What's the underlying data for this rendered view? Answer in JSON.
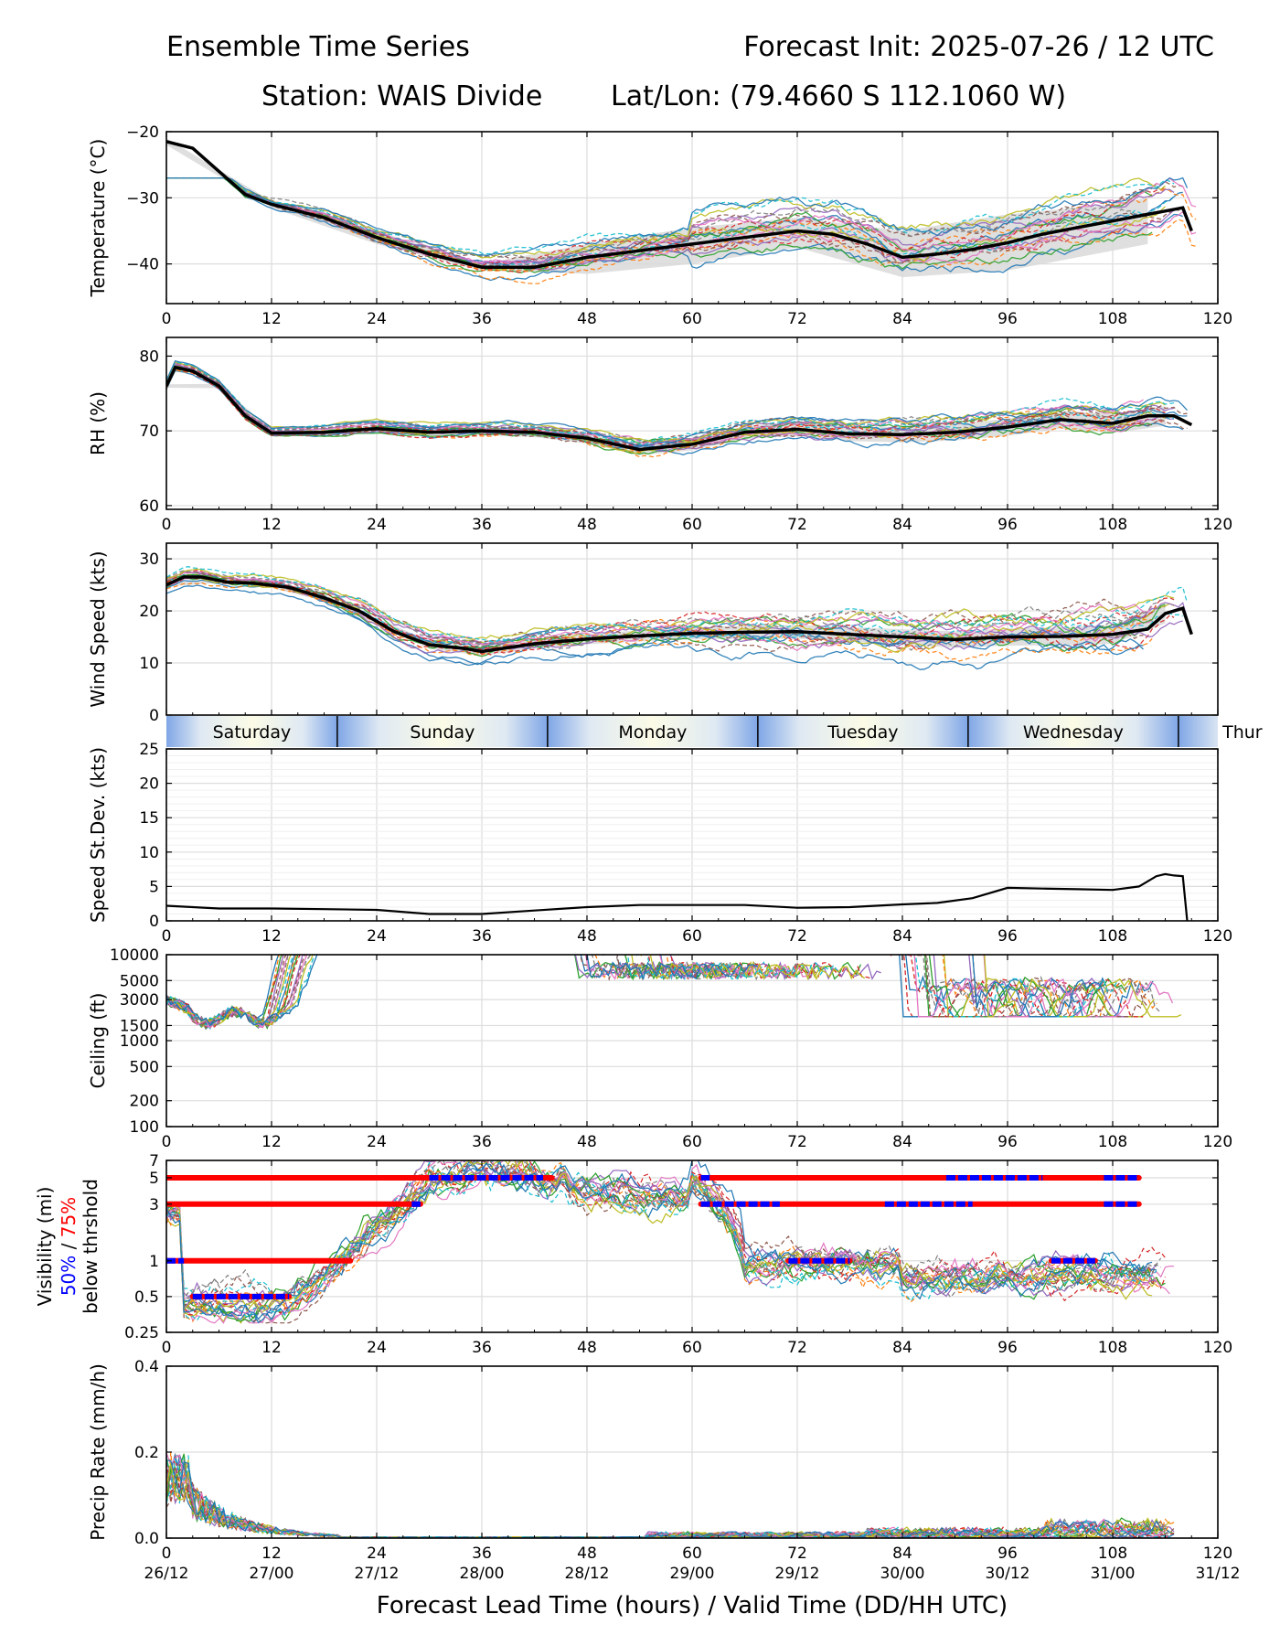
{
  "header": {
    "left": "Ensemble Time Series",
    "right": "Forecast Init: 2025-07-26 / 12 UTC",
    "station": "Station: WAIS Divide",
    "latlon": "Lat/Lon: (79.4660 S 112.1060 W)"
  },
  "colors": {
    "mean": "#000000",
    "spread": "#d9d9d9",
    "thr50": "#0000ff",
    "thr75": "#ff0000",
    "members": [
      "#1f77b4",
      "#ff7f0e",
      "#2ca02c",
      "#d62728",
      "#9467bd",
      "#8c564b",
      "#e377c2",
      "#7f7f7f",
      "#bcbd22",
      "#17becf"
    ]
  },
  "chart_data": [
    {
      "id": "temp",
      "type": "line",
      "ylabel": "Temperature (°C)",
      "ylim": [
        -46,
        -20
      ],
      "yticks": [
        -40,
        -30,
        -20
      ],
      "xlim": [
        0,
        120
      ],
      "xticks": [
        0,
        12,
        24,
        36,
        48,
        60,
        72,
        84,
        96,
        108,
        120
      ],
      "grid": true,
      "mean": {
        "x": [
          0,
          3,
          6,
          9,
          12,
          18,
          24,
          30,
          36,
          42,
          48,
          54,
          60,
          66,
          72,
          76,
          80,
          84,
          88,
          92,
          96,
          100,
          104,
          108,
          112,
          114,
          116,
          117
        ],
        "y": [
          -21.5,
          -22.5,
          -26,
          -29.5,
          -31,
          -33,
          -36,
          -38.5,
          -40.5,
          -40.5,
          -39,
          -38,
          -37,
          -36,
          -35,
          -35.5,
          -37,
          -39,
          -38.5,
          -37.8,
          -36.8,
          -35.5,
          -34.5,
          -33.5,
          -32.5,
          -32,
          -31.5,
          -35
        ]
      },
      "spread": {
        "x": [
          0,
          12,
          24,
          36,
          48,
          60,
          72,
          84,
          96,
          108,
          112
        ],
        "lo": [
          -22,
          -31.5,
          -37,
          -41,
          -41.5,
          -40,
          -37.5,
          -42,
          -41,
          -38,
          -37
        ],
        "hi": [
          -21,
          -30.5,
          -35,
          -40,
          -37,
          -34.5,
          -33,
          -35,
          -32.5,
          -31,
          -30
        ]
      },
      "ensemble_members": 21,
      "ensemble_range": {
        "x_end": 118,
        "min": -46,
        "max": -27
      }
    },
    {
      "id": "rh",
      "type": "line",
      "ylabel": "RH (%)",
      "ylim": [
        59.5,
        82.5
      ],
      "yticks": [
        60,
        70,
        80
      ],
      "xlim": [
        0,
        120
      ],
      "xticks": [
        0,
        12,
        24,
        36,
        48,
        60,
        72,
        84,
        96,
        108,
        120
      ],
      "grid": true,
      "mean": {
        "x": [
          0,
          1,
          3,
          6,
          9,
          12,
          18,
          24,
          30,
          36,
          42,
          48,
          54,
          60,
          66,
          72,
          78,
          84,
          90,
          96,
          102,
          108,
          112,
          115,
          117
        ],
        "y": [
          76,
          78.5,
          78,
          76,
          72,
          69.7,
          69.8,
          70.3,
          69.8,
          70,
          69.8,
          69,
          67.5,
          68.2,
          69.8,
          70.2,
          69.6,
          69.5,
          69.8,
          70.5,
          71.5,
          71,
          72,
          72,
          70.8
        ]
      },
      "ensemble_members": 21,
      "ensemble_range": {
        "x_end": 117,
        "min": 60,
        "max": 80
      }
    },
    {
      "id": "wind",
      "type": "line",
      "ylabel": "Wind Speed (kts)",
      "ylim": [
        0,
        33
      ],
      "yticks": [
        0,
        10,
        20,
        30
      ],
      "xlim": [
        0,
        120
      ],
      "xticks": [
        0,
        12,
        24,
        36,
        48,
        60,
        72,
        84,
        96,
        108,
        120
      ],
      "grid": true,
      "mean": {
        "x": [
          0,
          2,
          4,
          7,
          10,
          14,
          18,
          22,
          26,
          30,
          34,
          36,
          42,
          48,
          54,
          60,
          66,
          72,
          78,
          84,
          90,
          96,
          102,
          108,
          112,
          114,
          116,
          117
        ],
        "y": [
          25,
          26.5,
          26.5,
          25.5,
          25.3,
          24.5,
          22.5,
          20,
          16,
          13.5,
          12.8,
          12.2,
          13.7,
          14.6,
          15.2,
          15.7,
          15.9,
          16,
          15.5,
          15,
          14.5,
          15,
          15.1,
          15.5,
          16.5,
          19.5,
          20.5,
          15.5
        ]
      },
      "ensemble_members": 21,
      "ensemble_range": {
        "x_end": 117,
        "min": 8,
        "max": 31
      }
    },
    {
      "id": "spdsd",
      "type": "line",
      "ylabel": "Speed St.Dev. (kts)",
      "ylim": [
        0,
        25
      ],
      "yticks": [
        0,
        5,
        10,
        15,
        20,
        25
      ],
      "xlim": [
        0,
        120
      ],
      "xticks": [
        0,
        12,
        24,
        36,
        48,
        60,
        72,
        84,
        96,
        108,
        120
      ],
      "grid": true,
      "mean": {
        "x": [
          0,
          6,
          12,
          18,
          24,
          30,
          36,
          42,
          48,
          54,
          60,
          66,
          72,
          78,
          84,
          88,
          92,
          96,
          100,
          104,
          108,
          111,
          113,
          114,
          115,
          116,
          116.5
        ],
        "y": [
          2.2,
          1.8,
          1.8,
          1.7,
          1.6,
          1,
          1,
          1.5,
          2,
          2.3,
          2.3,
          2.3,
          1.9,
          2,
          2.4,
          2.6,
          3.3,
          4.8,
          4.7,
          4.6,
          4.5,
          5,
          6.5,
          6.8,
          6.6,
          6.5,
          0
        ]
      }
    },
    {
      "id": "ceiling",
      "type": "line",
      "ylabel": "Ceiling (ft)",
      "yscale": "log",
      "ylim": [
        100,
        10000
      ],
      "yticks": [
        100,
        200,
        500,
        1000,
        1500,
        3000,
        5000,
        10000
      ],
      "xlim": [
        0,
        120
      ],
      "xticks": [
        0,
        12,
        24,
        36,
        48,
        60,
        72,
        84,
        96,
        108,
        120
      ],
      "grid": true,
      "ensemble_members": 21,
      "ensemble_range": {
        "x_end": 117,
        "min": 1500,
        "max": 10000
      }
    },
    {
      "id": "vis",
      "type": "line",
      "ylabel": "Visibility (mi)",
      "ylabel2": "below thrshold",
      "lab50": "50%",
      "lab_sep": " / ",
      "lab75": "75%",
      "yscale": "log",
      "ylim": [
        0.25,
        7
      ],
      "yticks": [
        0.25,
        0.5,
        1,
        3,
        5,
        7
      ],
      "xlim": [
        0,
        120
      ],
      "xticks": [
        0,
        12,
        24,
        36,
        48,
        60,
        72,
        84,
        96,
        108,
        120
      ],
      "grid": true,
      "thresholds": [
        {
          "level": 5,
          "x": [
            0,
            44
          ],
          "p50": [
            [
              30,
              43
            ]
          ]
        },
        {
          "level": 3,
          "x": [
            0,
            29
          ],
          "p50": [
            [
              28,
              29
            ]
          ]
        },
        {
          "level": 1,
          "x": [
            0,
            21
          ],
          "p50": [
            [
              0,
              2
            ]
          ]
        },
        {
          "level": 0.5,
          "x": [
            3,
            14
          ],
          "p50": [
            [
              3,
              14
            ]
          ]
        },
        {
          "level": 5,
          "x": [
            61,
            111
          ],
          "p50": [
            [
              61,
              62
            ],
            [
              89,
              100
            ],
            [
              107,
              111
            ]
          ]
        },
        {
          "level": 3,
          "x": [
            61,
            111
          ],
          "p50": [
            [
              61,
              70
            ],
            [
              82,
              92
            ],
            [
              107,
              111
            ]
          ]
        },
        {
          "level": 1,
          "x": [
            71,
            78
          ],
          "p50": [
            [
              71,
              78
            ]
          ]
        },
        {
          "level": 1,
          "x": [
            101,
            106
          ],
          "p50": [
            [
              101,
              106
            ]
          ]
        }
      ],
      "ensemble_members": 21,
      "ensemble_range": {
        "x_end": 117,
        "min": 0.3,
        "max": 7
      }
    },
    {
      "id": "precip",
      "type": "line",
      "ylabel": "Precip Rate (mm/h)",
      "ylim": [
        0,
        0.4
      ],
      "yticks": [
        0.0,
        0.2,
        0.4
      ],
      "ytick_labels": [
        "0.0",
        "0.2",
        "0.4"
      ],
      "xlim": [
        0,
        120
      ],
      "xticks": [
        0,
        12,
        24,
        36,
        48,
        60,
        72,
        84,
        96,
        108,
        120
      ],
      "xtick_dates": [
        "26/12",
        "27/00",
        "27/12",
        "28/00",
        "28/12",
        "29/00",
        "29/12",
        "30/00",
        "30/12",
        "31/00",
        "31/12"
      ],
      "xlabel": "Forecast Lead Time (hours) / Valid Time (DD/HH UTC)",
      "grid": true,
      "ensemble_members": 21,
      "ensemble_range": {
        "x_end": 117,
        "min": 0,
        "max": 0.24
      }
    }
  ],
  "daybar": [
    {
      "label": "Saturday",
      "x0": 0,
      "x1": 19.5
    },
    {
      "label": "Sunday",
      "x0": 19.5,
      "x1": 43.5
    },
    {
      "label": "Monday",
      "x0": 43.5,
      "x1": 67.5
    },
    {
      "label": "Tuesday",
      "x0": 67.5,
      "x1": 91.5
    },
    {
      "label": "Wednesday",
      "x0": 91.5,
      "x1": 115.5
    },
    {
      "label": "Thur",
      "x0": 115.5,
      "x1": 120
    }
  ]
}
